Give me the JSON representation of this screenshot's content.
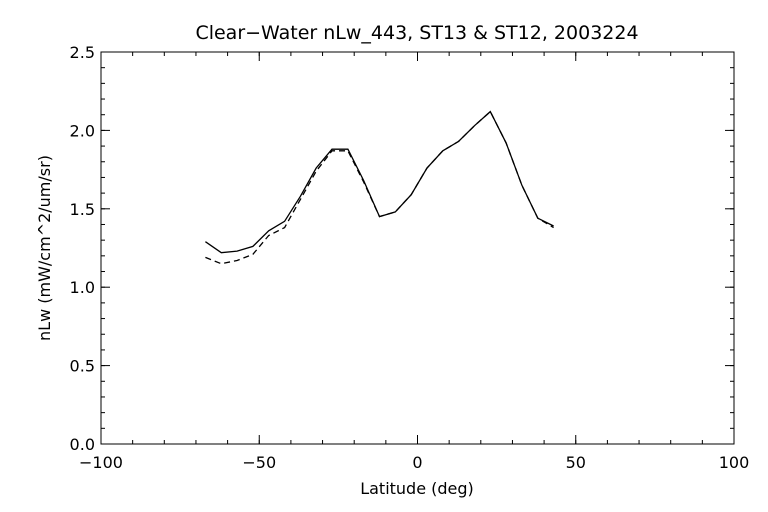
{
  "chart_data": {
    "type": "line",
    "title": "Clear−Water nLw_443, ST13 & ST12, 2003224",
    "xlabel": "Latitude (deg)",
    "ylabel": "nLw (mW/cm^2/um/sr)",
    "xlim": [
      -100,
      100
    ],
    "ylim": [
      0.0,
      2.5
    ],
    "x_ticks": [
      -100,
      -50,
      0,
      50,
      100
    ],
    "x_tick_labels": [
      "−100",
      "−50",
      "0",
      "50",
      "100"
    ],
    "y_ticks": [
      0.0,
      0.5,
      1.0,
      1.5,
      2.0,
      2.5
    ],
    "y_tick_labels": [
      "0.0",
      "0.5",
      "1.0",
      "1.5",
      "2.0",
      "2.5"
    ],
    "x_minor_step": 10,
    "y_minor_step": 0.1,
    "grid": false,
    "legend": "none",
    "series": [
      {
        "line_style": "solid",
        "color": "#000000",
        "x": [
          -67,
          -62,
          -57,
          -52,
          -47,
          -42,
          -37,
          -32,
          -27,
          -22,
          -17,
          -12,
          -7,
          -2,
          3,
          8,
          13,
          18,
          23,
          28,
          33,
          38,
          43
        ],
        "y": [
          1.29,
          1.22,
          1.23,
          1.26,
          1.36,
          1.42,
          1.58,
          1.76,
          1.88,
          1.88,
          1.68,
          1.45,
          1.48,
          1.59,
          1.76,
          1.87,
          1.93,
          2.03,
          2.12,
          1.92,
          1.65,
          1.44,
          1.39
        ]
      },
      {
        "line_style": "dashed",
        "color": "#000000",
        "x": [
          -67,
          -62,
          -57,
          -52,
          -47,
          -42,
          -37,
          -32,
          -27,
          -22,
          -17,
          -12,
          -7,
          -2,
          3,
          8,
          13,
          18,
          23,
          28,
          33,
          38,
          43
        ],
        "y": [
          1.19,
          1.15,
          1.17,
          1.21,
          1.33,
          1.38,
          1.56,
          1.74,
          1.87,
          1.87,
          1.67,
          1.45,
          1.48,
          1.59,
          1.76,
          1.87,
          1.93,
          2.03,
          2.12,
          1.92,
          1.65,
          1.44,
          1.38
        ]
      }
    ]
  }
}
